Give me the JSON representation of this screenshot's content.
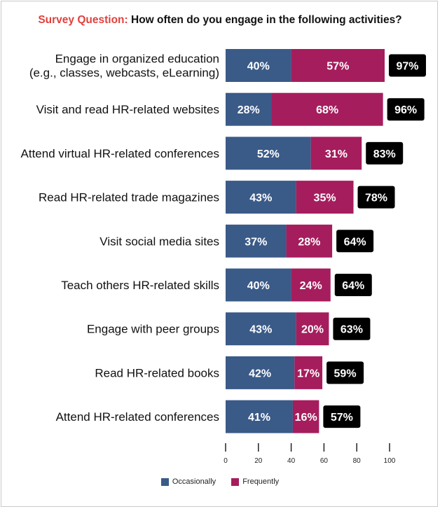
{
  "title": {
    "prefix": "Survey Question:",
    "text": "How often do you engage in the following activities?"
  },
  "colors": {
    "occasionally": "#3a5a88",
    "frequently": "#a51d5d",
    "total_bg": "#000000",
    "prefix": "#e0413d"
  },
  "chart_data": {
    "type": "bar",
    "orientation": "horizontal",
    "stacked": true,
    "categories": [
      [
        "Engage in organized education",
        "(e.g., classes, webcasts, eLearning)"
      ],
      [
        "Visit and read HR-related websites"
      ],
      [
        "Attend virtual HR-related conferences"
      ],
      [
        "Read HR-related trade magazines"
      ],
      [
        "Visit social media sites"
      ],
      [
        "Teach others HR-related skills"
      ],
      [
        "Engage with peer groups"
      ],
      [
        "Read HR-related books"
      ],
      [
        "Attend HR-related conferences"
      ]
    ],
    "series": [
      {
        "name": "Occasionally",
        "values": [
          40,
          28,
          52,
          43,
          37,
          40,
          43,
          42,
          41
        ]
      },
      {
        "name": "Frequently",
        "values": [
          57,
          68,
          31,
          35,
          28,
          24,
          20,
          17,
          16
        ]
      }
    ],
    "totals": [
      97,
      96,
      83,
      78,
      64,
      64,
      63,
      59,
      57
    ],
    "value_suffix": "%",
    "xlim": [
      0,
      100
    ],
    "xticks": [
      0,
      20,
      40,
      60,
      80,
      100
    ],
    "legend_position": "bottom"
  }
}
